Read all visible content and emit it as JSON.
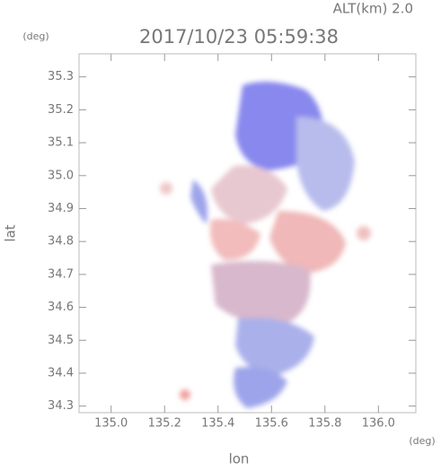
{
  "chart_data": {
    "type": "image",
    "title": "2017/10/23 05:59:38",
    "subtitle": "ALT(km) 2.0",
    "x_label": "lon",
    "y_label": "lat",
    "x_unit": "(deg)",
    "y_unit": "(deg)",
    "xlim": [
      134.88,
      136.14
    ],
    "ylim": [
      34.28,
      35.37
    ],
    "xticks": [
      {
        "value": 135,
        "label": "135.0"
      },
      135.2,
      135.4,
      135.6,
      135.8,
      {
        "value": 136,
        "label": "136.0"
      }
    ],
    "yticks": [
      34.3,
      34.4,
      34.5,
      34.6,
      34.7,
      34.8,
      34.9,
      {
        "value": 35,
        "label": "35.0"
      },
      35.1,
      35.2,
      35.3
    ]
  }
}
